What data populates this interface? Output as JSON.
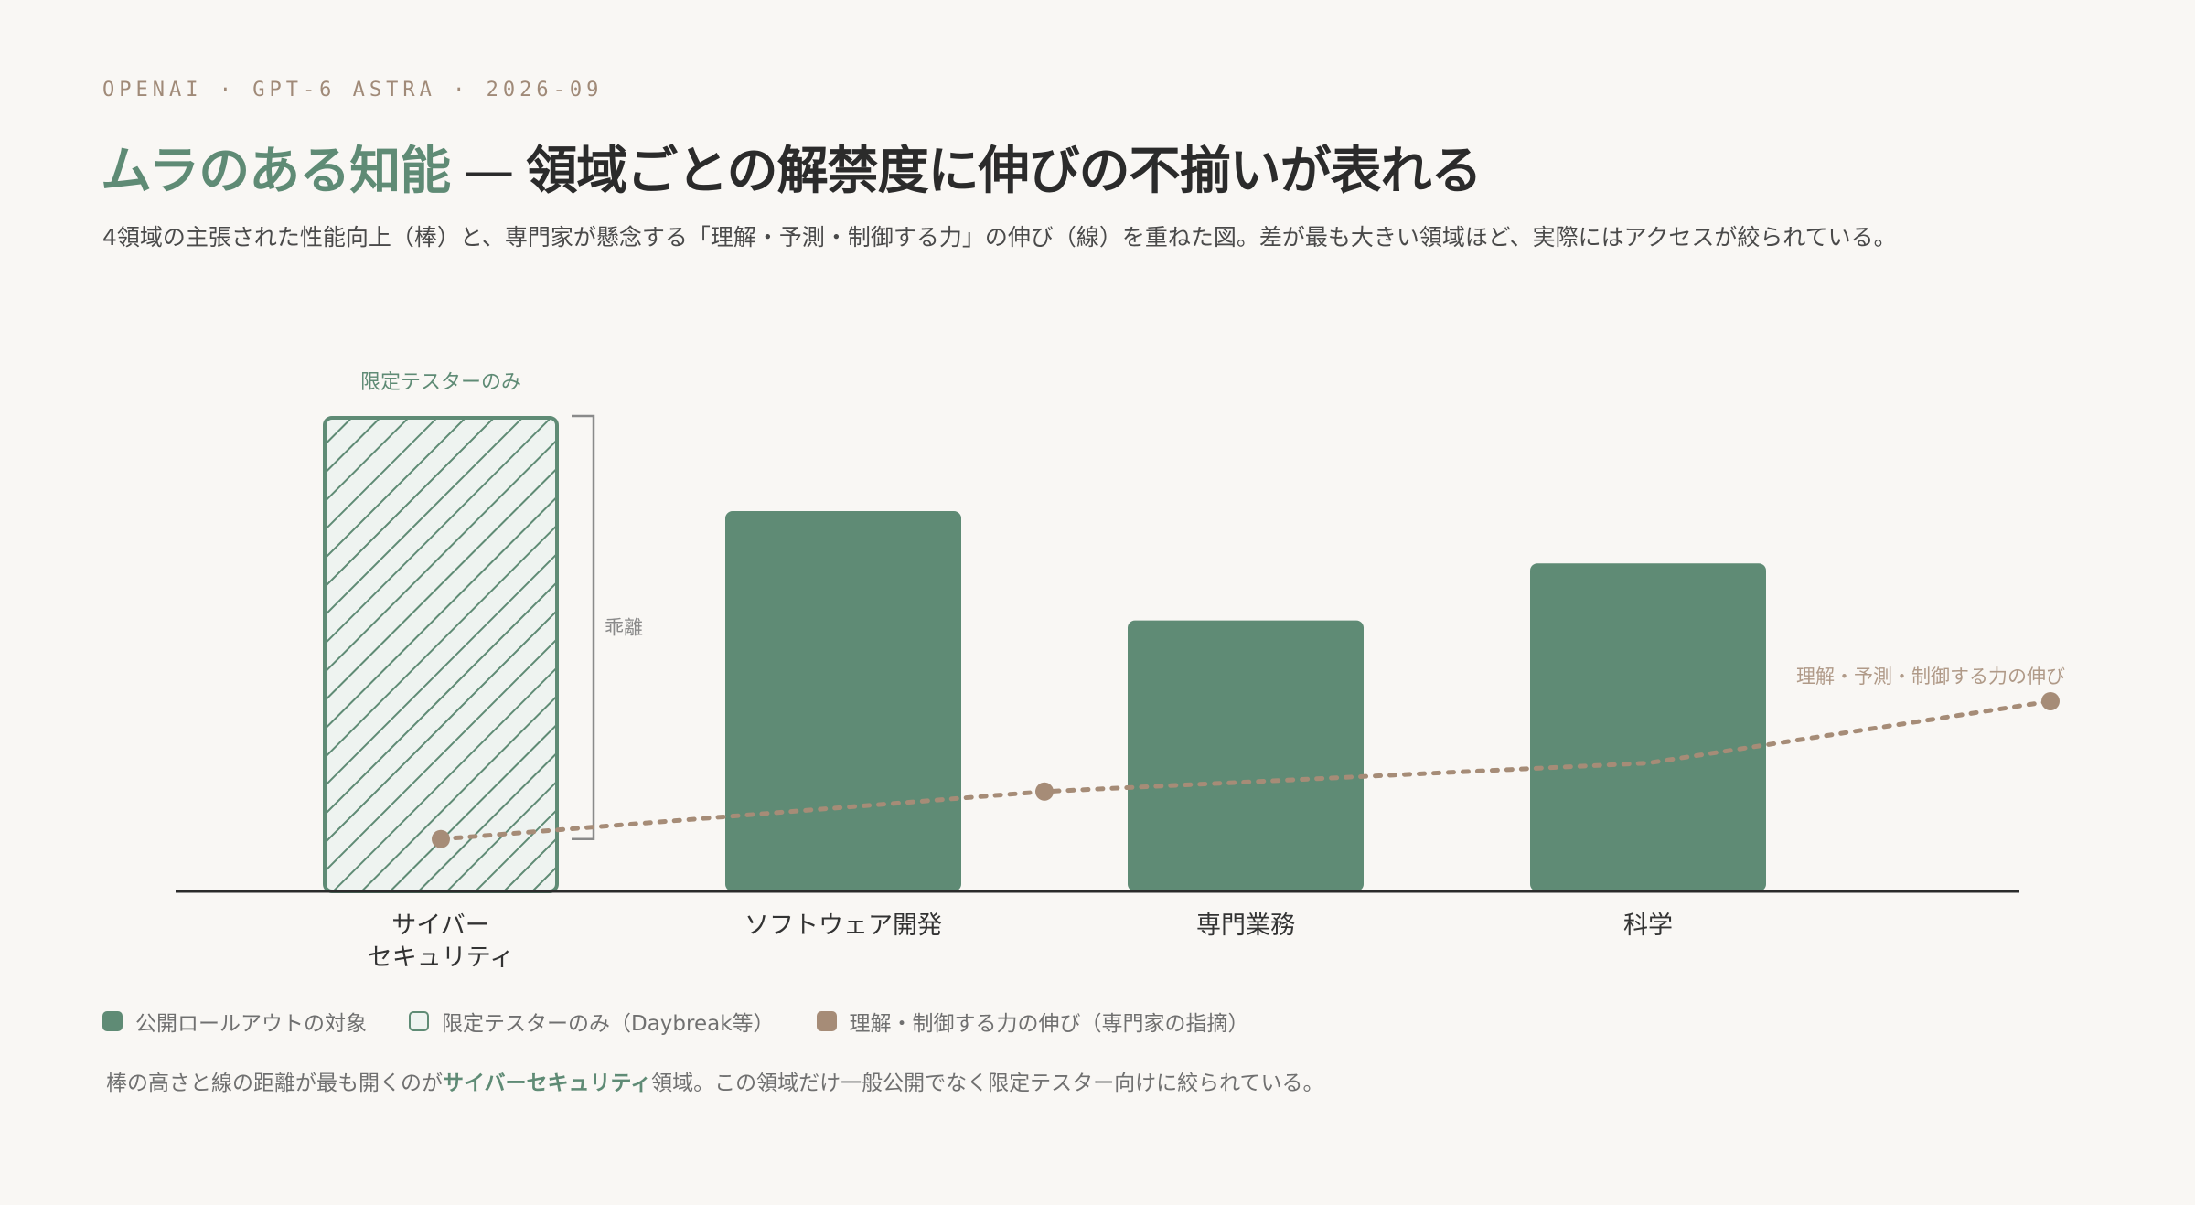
{
  "header": {
    "kicker": "OPENAI · GPT-6 ASTRA · 2026-09",
    "title_accent": "ムラのある知能",
    "title_dash": "—",
    "title_rest": "領域ごとの解禁度に伸びの不揃いが表れる",
    "subtitle": "4領域の主張された性能向上（棒）と、専門家が懸念する「理解・予測・制御する力」の伸び（線）を重ねた図。差が最も大きい領域ほど、実際にはアクセスが絞られている。"
  },
  "chart_data": {
    "type": "bar",
    "categories": [
      "サイバー\nセキュリティ",
      "ソフトウェア開発",
      "専門業務",
      "科学"
    ],
    "series": [
      {
        "values": [
          100,
          80,
          57,
          69
        ]
      },
      {
        "name": "理解・予測・制御する力の伸び",
        "x": [
          0,
          1.5,
          3,
          4
        ],
        "values": [
          11,
          21,
          27,
          40
        ]
      }
    ],
    "limited_category_index": 0,
    "ylim": [
      0,
      100
    ],
    "annotations": {
      "limited_label": "限定テスターのみ",
      "gap_label": "乖離",
      "line_label": "理解・予測・制御する力の伸び"
    },
    "colors": {
      "bar": "#5f8b75",
      "line": "#a68c77",
      "axis": "#2b2b2b",
      "bracket": "#8a8a8a"
    }
  },
  "legend": {
    "items": [
      {
        "label": "公開ロールアウトの対象"
      },
      {
        "label": "限定テスターのみ（Daybreak等）"
      },
      {
        "label": "理解・制御する力の伸び（専門家の指摘）"
      }
    ]
  },
  "footnote": {
    "pre": "棒の高さと線の距離が最も開くのが",
    "highlight": "サイバーセキュリティ",
    "post": "領域。この領域だけ一般公開でなく限定テスター向けに絞られている。"
  }
}
